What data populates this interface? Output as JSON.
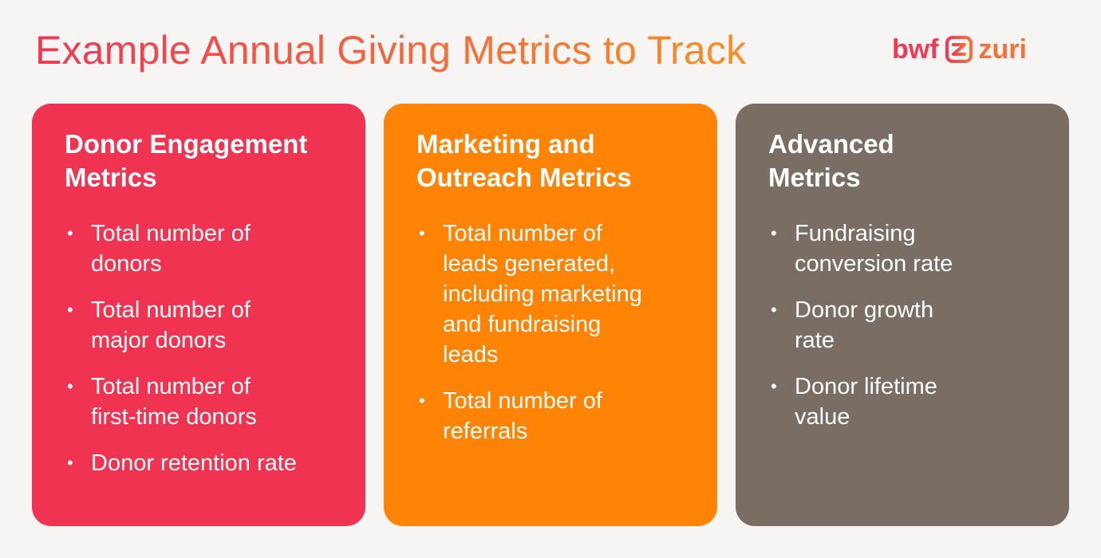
{
  "header": {
    "title": "Example Annual Giving Metrics to Track"
  },
  "logo": {
    "left_text": "bwf",
    "right_text": "zuri",
    "icon": "zuri-logo-icon",
    "colors": {
      "bwf": "#ee3a55",
      "zuri": "#f5713a"
    }
  },
  "colors": {
    "background": "#f7f5f3",
    "title_gradient": [
      "#ef3654",
      "#f98f23"
    ]
  },
  "cards": [
    {
      "heading": "Donor Engagement\nMetrics",
      "color": "#ef3351",
      "items": [
        "Total number of\ndonors",
        "Total number of\nmajor donors",
        "Total number of\nfirst-time donors",
        "Donor retention rate"
      ]
    },
    {
      "heading": "Marketing and\nOutreach Metrics",
      "color": "#ff8406",
      "items": [
        "Total number of\nleads generated,\nincluding marketing\nand fundraising\nleads",
        "Total number of\nreferrals"
      ]
    },
    {
      "heading": "Advanced\nMetrics",
      "color": "#7a6d64",
      "items": [
        "Fundraising\nconversion rate",
        "Donor growth\nrate",
        "Donor lifetime\nvalue"
      ]
    }
  ]
}
